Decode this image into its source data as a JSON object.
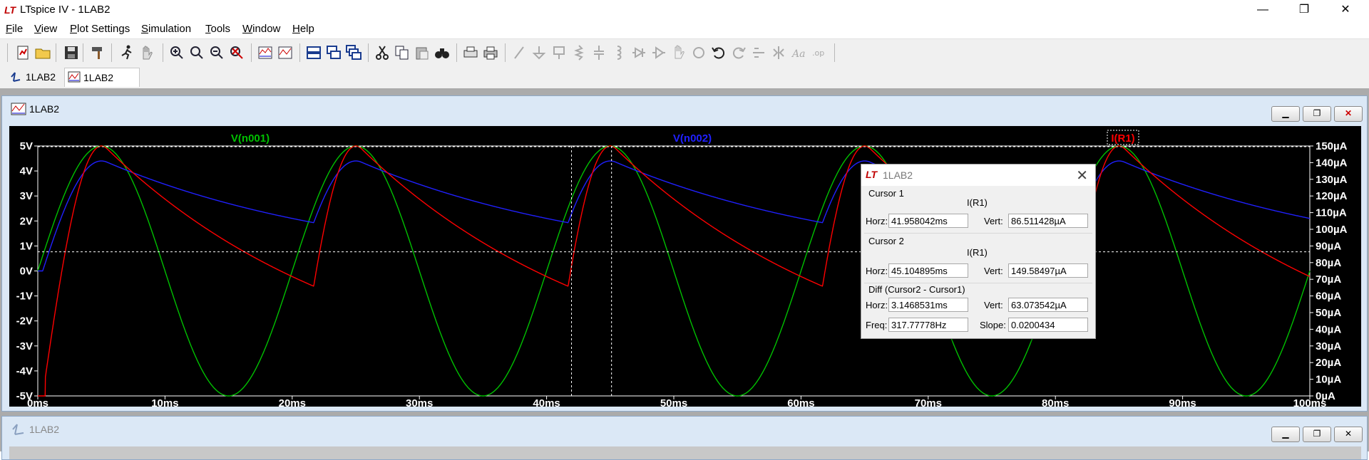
{
  "window": {
    "title": "LTspice IV - 1LAB2",
    "min": "—",
    "restore": "❐",
    "close": "✕"
  },
  "menu": [
    {
      "id": "file",
      "pre": "",
      "ul": "F",
      "post": "ile"
    },
    {
      "id": "view",
      "pre": "",
      "ul": "V",
      "post": "iew"
    },
    {
      "id": "plot-settings",
      "pre": "",
      "ul": "P",
      "post": "lot Settings"
    },
    {
      "id": "simulation",
      "pre": "",
      "ul": "S",
      "post": "imulation"
    },
    {
      "id": "tools",
      "pre": "",
      "ul": "T",
      "post": "ools"
    },
    {
      "id": "window",
      "pre": "",
      "ul": "W",
      "post": "indow"
    },
    {
      "id": "help",
      "pre": "",
      "ul": "H",
      "post": "elp"
    }
  ],
  "tabs": [
    {
      "label": "1LAB2",
      "kind": "schematic"
    },
    {
      "label": "1LAB2",
      "kind": "waveform",
      "active": true
    }
  ],
  "plot_window": {
    "title": "1LAB2"
  },
  "schematic_window": {
    "title": "1LAB2"
  },
  "chart_data": {
    "type": "line",
    "x_unit": "ms",
    "xlim": [
      0,
      100
    ],
    "x_ticks": [
      "0ms",
      "10ms",
      "20ms",
      "30ms",
      "40ms",
      "50ms",
      "60ms",
      "70ms",
      "80ms",
      "90ms",
      "100ms"
    ],
    "y_left_lim": [
      -5,
      5
    ],
    "y_left_ticks": [
      "5V",
      "4V",
      "3V",
      "2V",
      "1V",
      "0V",
      "-1V",
      "-2V",
      "-3V",
      "-4V",
      "-5V"
    ],
    "y_right_lim": [
      0,
      150
    ],
    "y_right_ticks": [
      "150µA",
      "140µA",
      "130µA",
      "120µA",
      "110µA",
      "100µA",
      "90µA",
      "80µA",
      "70µA",
      "60µA",
      "50µA",
      "40µA",
      "30µA",
      "20µA",
      "10µA",
      "0µA"
    ],
    "background": "#000000",
    "series": [
      {
        "name": "V(n001)",
        "color": "#00c000",
        "axis": "left",
        "label_pos": "left"
      },
      {
        "name": "V(n002)",
        "color": "#2020ff",
        "axis": "left",
        "label_pos": "center"
      },
      {
        "name": "I(R1)",
        "color": "#ff0000",
        "axis": "right",
        "label_pos": "right"
      }
    ],
    "signal": {
      "amplitude_v": 5,
      "period_ms": 20,
      "diode_drop_v": 0.6,
      "rc_ms": 20,
      "peak_current_ua": 150,
      "v002_peak_v": 4.4
    },
    "cursors": [
      {
        "name": "Cursor 1",
        "x": 41.958042,
        "y": 86.511428
      },
      {
        "name": "Cursor 2",
        "x": 45.104895,
        "y": 149.58497
      }
    ]
  },
  "cursor_dialog": {
    "title": "1LAB2",
    "close": "✕",
    "cursor1": {
      "heading": "Cursor 1",
      "trace": "I(R1)",
      "horz_label": "Horz:",
      "horz": "41.958042ms",
      "vert_label": "Vert:",
      "vert": "86.511428µA"
    },
    "cursor2": {
      "heading": "Cursor 2",
      "trace": "I(R1)",
      "horz_label": "Horz:",
      "horz": "45.104895ms",
      "vert_label": "Vert:",
      "vert": "149.58497µA"
    },
    "diff": {
      "heading": "Diff (Cursor2 - Cursor1)",
      "horz_label": "Horz:",
      "horz": "3.1468531ms",
      "vert_label": "Vert:",
      "vert": "63.073542µA",
      "freq_label": "Freq:",
      "freq": "317.77778Hz",
      "slope_label": "Slope:",
      "slope": "0.0200434"
    }
  }
}
